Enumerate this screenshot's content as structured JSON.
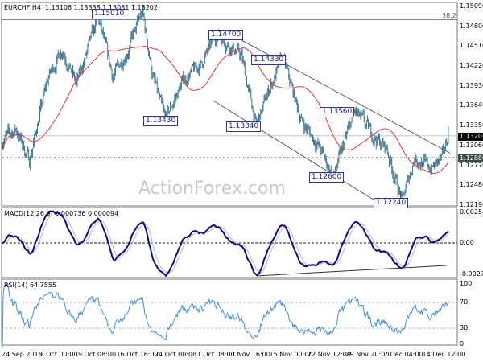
{
  "header": {
    "symbol": "EURCHF,H4",
    "ohlc": "1.13108 1.13338 1.13081 1.13202"
  },
  "watermark": "ActionForex.com",
  "colors": {
    "bars": "#3f7590",
    "ma": "#e8303a",
    "macd": "#0a0a8c",
    "signal": "#b8b8b8",
    "rsi": "#3a8fe0",
    "lines": "#506a6a"
  },
  "chart_data": [
    {
      "type": "ohlc",
      "title": "EURCHF,H4",
      "timeframe": "H4",
      "last_bar": {
        "open": 1.13108,
        "high": 1.13338,
        "low": 1.13081,
        "close": 1.13202
      },
      "y_ticks": [
        "1.15090",
        "1.14800",
        "1.14510",
        "1.14220",
        "1.13930",
        "1.13640",
        "1.13350",
        "1.13060",
        "1.12770",
        "1.12480",
        "1.12190"
      ],
      "ylim": [
        1.1219,
        1.1509
      ],
      "x_ticks": [
        "24 Sep 2018",
        "2 Oct 00:00",
        "9 Oct 08:00",
        "16 Oct 16:00",
        "24 Oct 00:00",
        "31 Oct 08:00",
        "7 Nov 16:00",
        "15 Nov 00:00",
        "22 Nov 12:00",
        "29 Nov 20:00",
        "7 Dec 04:00",
        "14 Dec 12:00"
      ],
      "price_path": [
        [
          "24 Sep 00:00",
          1.1313
        ],
        [
          "27 Sep 00:00",
          1.133
        ],
        [
          "29 Sep 20:00",
          1.1284
        ],
        [
          "1 Oct 16:00",
          1.1342
        ],
        [
          "3 Oct 16:00",
          1.1407
        ],
        [
          "6 Oct 08:00",
          1.1448
        ],
        [
          "9 Oct 00:00",
          1.1395
        ],
        [
          "13 Oct 04:00",
          1.1492
        ],
        [
          "16 Oct 00:00",
          1.1407
        ],
        [
          "19 Oct 00:00",
          1.1448
        ],
        [
          "21 Oct 16:00",
          1.1501
        ],
        [
          "23 Oct 16:00",
          1.1407
        ],
        [
          "26 Oct 00:00",
          1.1343
        ],
        [
          "29 Oct 12:00",
          1.1401
        ],
        [
          "2 Nov 00:00",
          1.1425
        ],
        [
          "5 Nov 00:00",
          1.147
        ],
        [
          "9 Nov 16:00",
          1.1436
        ],
        [
          "12 Nov 12:00",
          1.1334
        ],
        [
          "15 Nov 00:00",
          1.1389
        ],
        [
          "17 Nov 16:00",
          1.1433
        ],
        [
          "21 Nov 08:00",
          1.1342
        ],
        [
          "24 Nov 12:00",
          1.1307
        ],
        [
          "27 Nov 12:00",
          1.126
        ],
        [
          "1 Dec 12:00",
          1.1356
        ],
        [
          "5 Dec 08:00",
          1.1319
        ],
        [
          "7 Dec 16:00",
          1.1301
        ],
        [
          "10 Dec 16:00",
          1.1224
        ],
        [
          "13 Dec 00:00",
          1.1289
        ],
        [
          "16 Dec 04:00",
          1.1272
        ],
        [
          "18 Dec 12:00",
          1.1289
        ],
        [
          "19 Dec 12:00",
          1.13202
        ]
      ],
      "swing_labels": [
        "1.15010",
        "1.14700",
        "1.14330",
        "1.13430",
        "1.13340",
        "1.13560",
        "1.12600",
        "1.12240"
      ],
      "moving_average": "red moving average line",
      "horizontal_lines": [
        {
          "price": 1.149,
          "label": "38.2",
          "style": "solid"
        },
        {
          "price": 1.13202,
          "label": "1.13202",
          "style": "solid-gray"
        },
        {
          "price": 1.1288,
          "label": "1.12880",
          "style": "dashed"
        }
      ],
      "trendlines": [
        {
          "from": [
            "8 Nov 04:00",
            1.1466
          ],
          "to": [
            "19 Dec 20:00",
            1.1295
          ]
        },
        {
          "from": [
            "4 Nov 04:00",
            1.1372
          ],
          "to": [
            "6 Dec 00:00",
            1.1223
          ]
        }
      ]
    },
    {
      "type": "line",
      "title": "MACD(12,26,9) 0.000736 0.000094",
      "params": [
        12,
        26,
        9
      ],
      "values": [
        0.000736,
        9.4e-05
      ],
      "y_ticks": [
        "0.00254",
        "0.00",
        "-0.002742"
      ],
      "ylim": [
        -0.002742,
        0.00254
      ],
      "trendlines": [
        {
          "from": [
            "12 Nov 12:00",
            -0.0026
          ],
          "to": [
            "19 Dec 04:00",
            -0.00178
          ]
        }
      ]
    },
    {
      "type": "line",
      "title": "RSI(14) 64.7555",
      "period": 14,
      "value": 64.7555,
      "y_ticks": [
        "100",
        "70",
        "30",
        "0"
      ],
      "ylim": [
        0,
        100
      ],
      "levels": [
        70,
        30
      ]
    }
  ]
}
